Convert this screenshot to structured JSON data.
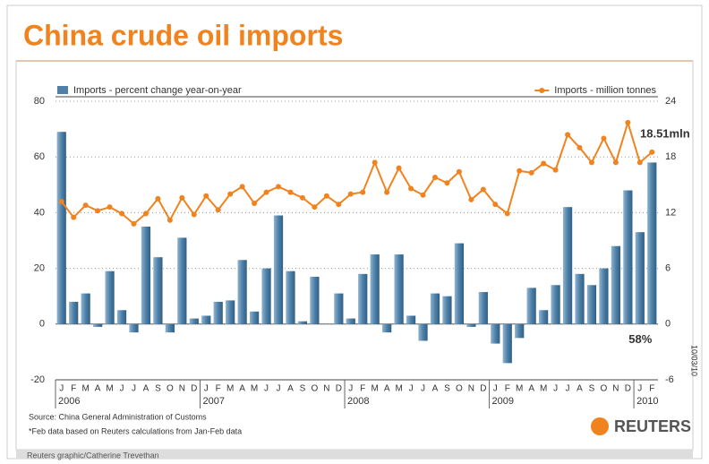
{
  "chart_data": {
    "type": "bar_line",
    "title": "China crude oil imports",
    "categories": [
      "J",
      "F",
      "M",
      "A",
      "M",
      "J",
      "J",
      "A",
      "S",
      "O",
      "N",
      "D",
      "J",
      "F",
      "M",
      "A",
      "M",
      "J",
      "J",
      "A",
      "S",
      "O",
      "N",
      "D",
      "J",
      "F",
      "M",
      "A",
      "M",
      "J",
      "J",
      "A",
      "S",
      "O",
      "N",
      "D",
      "J",
      "F",
      "M",
      "A",
      "M",
      "J",
      "J",
      "A",
      "S",
      "O",
      "N",
      "D",
      "J",
      "F"
    ],
    "year_labels": [
      "2006",
      "2007",
      "2008",
      "2009",
      "2010"
    ],
    "series": [
      {
        "name": "Imports - percent change year-on-year",
        "type": "bar",
        "color": "#4f81a8",
        "values": [
          69,
          8,
          11,
          -1,
          19,
          5,
          -3,
          35,
          24,
          -3,
          31,
          2,
          3,
          8,
          8.5,
          23,
          4.5,
          20,
          39,
          19,
          1,
          17,
          0,
          11,
          2,
          18,
          25,
          -3,
          25,
          3,
          -6,
          11,
          10,
          29,
          -1,
          11.5,
          -7,
          -14,
          -5,
          13,
          5,
          14,
          42,
          18,
          14,
          20,
          28,
          48,
          33,
          58
        ]
      },
      {
        "name": "Imports - million tonnes",
        "type": "line",
        "axis": "y2",
        "color": "#f0831e",
        "values": [
          13.2,
          11.5,
          12.8,
          12.2,
          12.6,
          11.9,
          10.8,
          11.9,
          13.5,
          11.2,
          13.6,
          11.8,
          13.8,
          12.3,
          14,
          14.8,
          13,
          14.2,
          14.8,
          14.2,
          13.6,
          12.6,
          13.8,
          12.9,
          14,
          14.2,
          17.4,
          14.2,
          16.8,
          14.6,
          13.9,
          15.8,
          15.2,
          16.4,
          13.4,
          14.5,
          12.9,
          11.9,
          16.5,
          16.3,
          17.3,
          16.6,
          20.4,
          19,
          17.4,
          20,
          17.4,
          21.7,
          17.4,
          18.51
        ]
      }
    ],
    "ylim": [
      -20,
      80
    ],
    "yticks": [
      -20,
      0,
      20,
      40,
      60,
      80
    ],
    "y2lim": [
      -6,
      24
    ],
    "y2ticks": [
      -6,
      0,
      6,
      12,
      18,
      24
    ],
    "grid": true,
    "annotations": [
      "18.51mln",
      "58%"
    ],
    "date_stamp": "10/03/10",
    "source": "Source: China General Administration of Customs",
    "footnote": "*Feb data based on Reuters calculations from Jan-Feb data",
    "brand": "REUTERS",
    "credit": "Reuters graphic/Catherine Trevethan"
  }
}
